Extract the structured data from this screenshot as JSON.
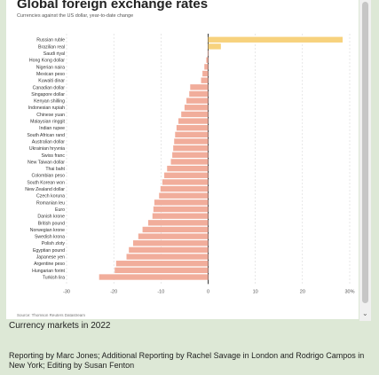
{
  "chart_data": {
    "type": "bar",
    "orientation": "horizontal",
    "title": "Global foreign exchange rates",
    "subtitle": "Currencies against the US dollar, year-to-date change",
    "source": "Source: Thomson Reuters Datastream",
    "xlim": [
      -30,
      30
    ],
    "xticks": [
      "-30",
      "-20",
      "-10",
      "0",
      "10",
      "20",
      "30%"
    ],
    "xtick_values": [
      -30,
      -20,
      -10,
      0,
      10,
      20,
      30
    ],
    "grid": true,
    "positive_color": "#f7d27d",
    "negative_color": "#f1ad9b",
    "categories": [
      "Russian ruble",
      "Brazilian real",
      "Saudi riyal",
      "Hong Kong dollar",
      "Nigerian naira",
      "Mexican peso",
      "Kuwaiti dinar",
      "Canadian dollar",
      "Singapore dollar",
      "Kenyan shilling",
      "Indonesian rupiah",
      "Chinese yuan",
      "Malaysian ringgit",
      "Indian rupee",
      "South African rand",
      "Australian dollar",
      "Ukrainian hryvnia",
      "Swiss franc",
      "New Taiwan dollar",
      "Thai baht",
      "Colombian peso",
      "South Korean won",
      "New Zealand dollar",
      "Czech koruna",
      "Romanian leu",
      "Euro",
      "Danish krone",
      "British pound",
      "Norwegian krone",
      "Swedish krona",
      "Polish zloty",
      "Egyptian pound",
      "Japanese yen",
      "Argentine peso",
      "Hungarian forint",
      "Turkish lira"
    ],
    "values": [
      28.5,
      2.7,
      -0.1,
      -0.4,
      -0.8,
      -1.2,
      -1.5,
      -3.8,
      -4.0,
      -4.6,
      -5.0,
      -5.7,
      -6.3,
      -6.7,
      -7.0,
      -7.2,
      -7.4,
      -7.6,
      -7.9,
      -8.7,
      -9.3,
      -9.7,
      -10.1,
      -10.4,
      -11.4,
      -11.6,
      -11.8,
      -12.7,
      -13.9,
      -14.8,
      -15.9,
      -16.8,
      -17.3,
      -19.5,
      -19.8,
      -23.1
    ]
  },
  "scrollbar": {
    "arrow": "⌄"
  },
  "caption": "Currency markets in 2022",
  "credit": "Reporting by Marc Jones; Additional Reporting by Rachel Savage in London and Rodrigo Campos in New York; Editing by Susan Fenton"
}
